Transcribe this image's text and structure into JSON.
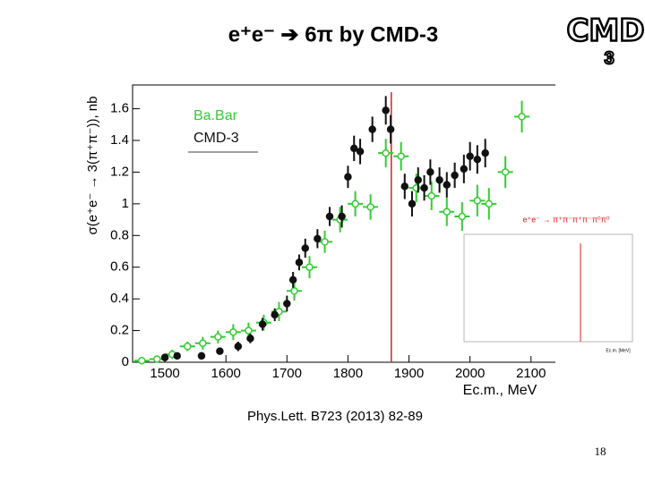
{
  "chart_data": {
    "type": "scatter",
    "title": "e⁺e⁻ ➔  6π by CMD-3",
    "ylabel": "σ(e⁺e⁻ → 3(π⁺π⁻)), nb",
    "xlabel": "Ec.m., MeV",
    "xlim": [
      1447,
      2140
    ],
    "ylim": [
      0,
      1.75
    ],
    "xticks": [
      1500,
      1600,
      1700,
      1800,
      1900,
      2000,
      2100
    ],
    "yticks": [
      0,
      0.2,
      0.4,
      0.6,
      0.8,
      1,
      1.2,
      1.4,
      1.6
    ],
    "vline": 1871,
    "vline_color": "#dd2222",
    "series": [
      {
        "name": "Ba.Bar",
        "color": "#33cc33",
        "marker": "open",
        "xerr": 12.5,
        "x": [
          1462,
          1487,
          1512,
          1537,
          1562,
          1587,
          1612,
          1637,
          1662,
          1687,
          1712,
          1737,
          1762,
          1787,
          1812,
          1837,
          1862,
          1887,
          1912,
          1937,
          1962,
          1987,
          2012,
          2031,
          2058,
          2085
        ],
        "values": [
          0.01,
          0.02,
          0.05,
          0.1,
          0.12,
          0.16,
          0.19,
          0.2,
          0.25,
          0.32,
          0.45,
          0.6,
          0.76,
          0.9,
          1.0,
          0.98,
          1.32,
          1.3,
          1.1,
          1.05,
          0.95,
          0.92,
          1.02,
          1.0,
          1.2,
          1.55
        ],
        "yerr": [
          0.01,
          0.02,
          0.03,
          0.03,
          0.04,
          0.04,
          0.05,
          0.05,
          0.05,
          0.06,
          0.06,
          0.07,
          0.07,
          0.08,
          0.08,
          0.08,
          0.09,
          0.09,
          0.09,
          0.09,
          0.09,
          0.09,
          0.1,
          0.1,
          0.1,
          0.1
        ]
      },
      {
        "name": "CMD-3",
        "color": "#111111",
        "marker": "filled",
        "xerr": 3,
        "x": [
          1500,
          1520,
          1560,
          1590,
          1620,
          1640,
          1660,
          1680,
          1700,
          1710,
          1720,
          1730,
          1750,
          1770,
          1790,
          1800,
          1810,
          1820,
          1840,
          1862,
          1870,
          1893,
          1905,
          1915,
          1925,
          1935,
          1950,
          1962,
          1975,
          1990,
          2000,
          2012,
          2025
        ],
        "values": [
          0.03,
          0.04,
          0.04,
          0.07,
          0.1,
          0.15,
          0.24,
          0.3,
          0.37,
          0.52,
          0.63,
          0.72,
          0.78,
          0.92,
          0.92,
          1.17,
          1.35,
          1.33,
          1.47,
          1.59,
          1.47,
          1.11,
          1.0,
          1.15,
          1.1,
          1.2,
          1.15,
          1.12,
          1.18,
          1.22,
          1.3,
          1.28,
          1.32
        ],
        "yerr": [
          0.01,
          0.01,
          0.02,
          0.02,
          0.03,
          0.03,
          0.04,
          0.04,
          0.05,
          0.05,
          0.05,
          0.06,
          0.06,
          0.06,
          0.07,
          0.07,
          0.08,
          0.08,
          0.08,
          0.09,
          0.09,
          0.08,
          0.08,
          0.08,
          0.08,
          0.08,
          0.08,
          0.08,
          0.08,
          0.09,
          0.09,
          0.09,
          0.09
        ]
      }
    ]
  },
  "inset": {
    "title": "e⁺e⁻ → π⁺π⁻π⁺π⁻π⁰π⁰",
    "xlabel": "Ec.m. [MeV]"
  },
  "logo": {
    "letters": "CMD",
    "number": "3"
  },
  "reference": "Phys.Lett. B723 (2013) 82-89",
  "page_number": "18"
}
